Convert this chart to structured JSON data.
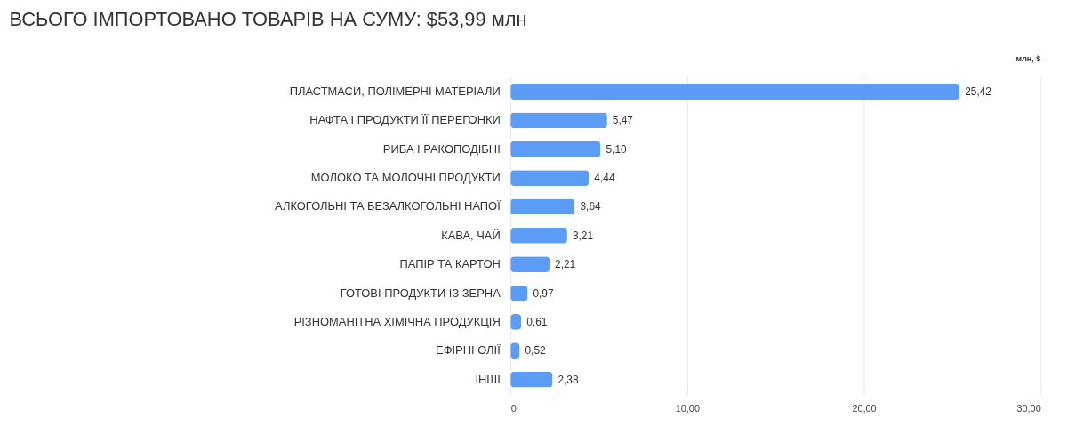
{
  "chart_data": {
    "type": "bar",
    "orientation": "horizontal",
    "title": "ВСЬОГО ІМПОРТОВАНО ТОВАРІВ НА СУМУ: $53,99 млн",
    "xlabel": "млн, $",
    "categories": [
      "ПЛАСТМАСИ, ПОЛІМЕРНІ МАТЕРІАЛИ",
      "НАФТА І ПРОДУКТИ ЇЇ ПЕРЕГОНКИ",
      "РИБА І РАКОПОДІБНІ",
      "МОЛОКО ТА МОЛОЧНІ ПРОДУКТИ",
      "АЛКОГОЛЬНІ ТА БЕЗАЛКОГОЛЬНІ НАПОЇ",
      "КАВА, ЧАЙ",
      "ПАПІР ТА КАРТОН",
      "ГОТОВІ ПРОДУКТИ ІЗ ЗЕРНА",
      "РІЗНОМАНІТНА ХІМІЧНА ПРОДУКЦІЯ",
      "ЕФІРНІ ОЛІЇ",
      "ІНШІ"
    ],
    "values": [
      25.42,
      5.47,
      5.1,
      4.44,
      3.64,
      3.21,
      2.21,
      0.97,
      0.61,
      0.52,
      2.38
    ],
    "value_labels": [
      "25,42",
      "5,47",
      "5,10",
      "4,44",
      "3,64",
      "3,21",
      "2,21",
      "0,97",
      "0,61",
      "0,52",
      "2,38"
    ],
    "color": "#5b9cf6",
    "xlim": [
      0,
      30
    ],
    "xticks": [
      0,
      {
        "value": 10,
        "label": "10,00"
      },
      {
        "value": 20,
        "label": "20,00"
      },
      {
        "value": 30,
        "label": "30,00"
      }
    ],
    "grid": "x"
  }
}
